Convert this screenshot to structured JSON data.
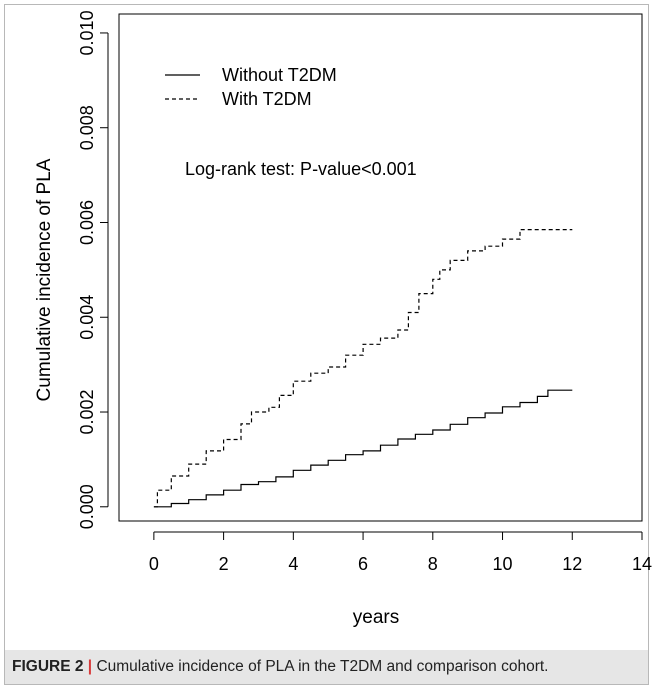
{
  "chart_data": {
    "type": "line",
    "xlabel": "years",
    "ylabel": "Cumulative incidence of PLA",
    "xlim": [
      -1,
      14
    ],
    "ylim": [
      -0.0003,
      0.0104
    ],
    "x_ticks": [
      0,
      2,
      4,
      6,
      8,
      10,
      12,
      14
    ],
    "x_tick_labels": [
      "0",
      "2",
      "4",
      "6",
      "8",
      "10",
      "12",
      "14"
    ],
    "y_ticks": [
      0,
      0.002,
      0.004,
      0.006,
      0.008,
      0.01
    ],
    "y_tick_labels": [
      "0.000",
      "0.002",
      "0.004",
      "0.006",
      "0.008",
      "0.010"
    ],
    "annotation": "Log-rank test: P-value<0.001",
    "legend_position": "top-left",
    "grid": false,
    "series": [
      {
        "name": "Without T2DM",
        "line_style": "solid",
        "color": "#000000",
        "x": [
          0,
          0.5,
          1,
          1.5,
          2,
          2.5,
          3,
          3.5,
          4,
          4.5,
          5,
          5.5,
          6,
          6.5,
          7,
          7.5,
          8,
          8.5,
          9,
          9.5,
          10,
          10.5,
          11,
          11.3,
          12
        ],
        "y": [
          0,
          7e-05,
          0.00015,
          0.00025,
          0.00035,
          0.00047,
          0.00053,
          0.00063,
          0.00077,
          0.00088,
          0.00098,
          0.0011,
          0.00118,
          0.0013,
          0.00143,
          0.00153,
          0.00162,
          0.00174,
          0.00188,
          0.00198,
          0.00211,
          0.0022,
          0.00233,
          0.00246,
          0.00246
        ]
      },
      {
        "name": "With T2DM",
        "line_style": "dashed",
        "color": "#000000",
        "x": [
          0,
          0.1,
          0.5,
          1,
          1.5,
          2,
          2.5,
          2.8,
          3.3,
          3.6,
          4,
          4.5,
          5,
          5.5,
          6,
          6.5,
          7,
          7.3,
          7.6,
          8,
          8.2,
          8.5,
          9,
          9.5,
          10,
          10.5,
          11,
          12
        ],
        "y": [
          0,
          0.00035,
          0.00065,
          0.0009,
          0.00118,
          0.00142,
          0.00175,
          0.002,
          0.0021,
          0.00235,
          0.00265,
          0.00282,
          0.00295,
          0.0032,
          0.00343,
          0.00356,
          0.00373,
          0.0041,
          0.0045,
          0.0048,
          0.005,
          0.0052,
          0.0054,
          0.0055,
          0.00565,
          0.00585,
          0.00585,
          0.00585
        ]
      }
    ]
  },
  "caption": {
    "label": "FIGURE 2",
    "separator": "|",
    "text": "Cumulative incidence of PLA in the T2DM and comparison cohort."
  }
}
